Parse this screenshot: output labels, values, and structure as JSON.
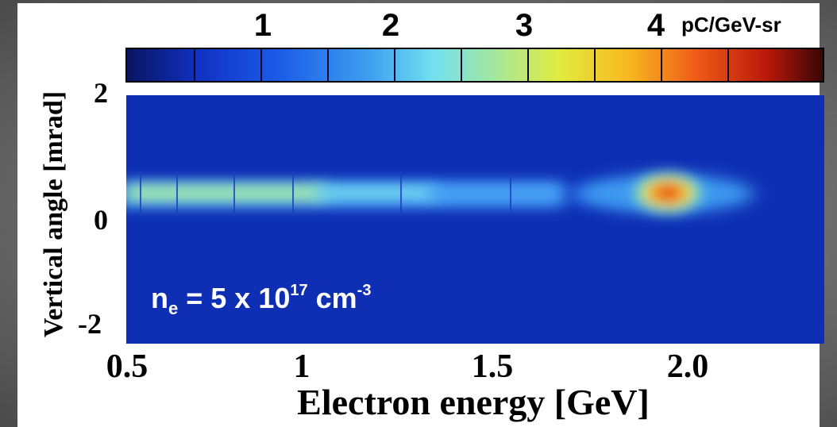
{
  "chart_data": {
    "type": "heatmap",
    "title": "",
    "xlabel": "Electron energy [GeV]",
    "ylabel": "Vertical angle [mrad]",
    "xlim": [
      0.5,
      2.4
    ],
    "ylim": [
      -2.3,
      2.5
    ],
    "x_ticks": [
      "0.5",
      "1",
      "1.5",
      "2.0"
    ],
    "x_tick_values": [
      0.5,
      1.0,
      1.5,
      2.0
    ],
    "y_ticks": [
      "2",
      "0",
      "-2"
    ],
    "y_tick_values": [
      2,
      0,
      -2
    ],
    "colorbar": {
      "unit": "pC/GeV-sr",
      "ticks": [
        "1",
        "2",
        "3",
        "4"
      ],
      "tick_values": [
        1,
        2,
        3,
        4
      ],
      "range": [
        0,
        5
      ],
      "colormap": "jet"
    },
    "annotation": {
      "prefix": "n",
      "subscript": "e",
      "middle": " = 5 x 10",
      "superscript": "17",
      "unit": " cm",
      "unit_superscript": "-3"
    },
    "features": [
      {
        "name": "low-energy tail",
        "x_range": [
          0.5,
          1.35
        ],
        "y_center": 0.3,
        "peak_value": 2.2
      },
      {
        "name": "main peak",
        "x_center": 1.95,
        "y_center": 0.3,
        "peak_value": 4.6
      }
    ],
    "grid": false
  }
}
